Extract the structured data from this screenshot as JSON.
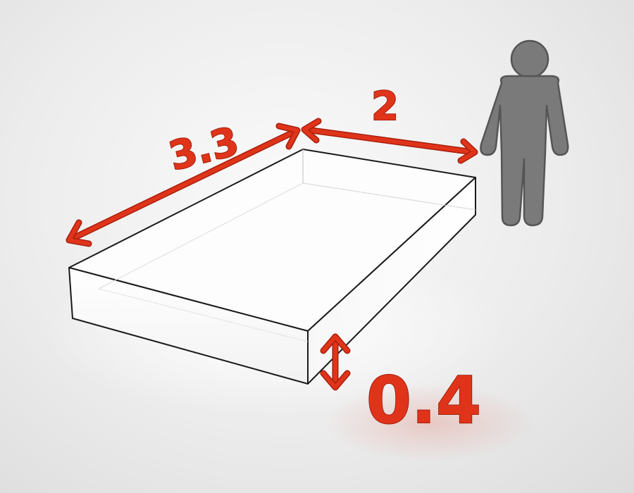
{
  "dimensions": {
    "length": "3.3",
    "width": "2",
    "height": "0.4"
  },
  "colors": {
    "accent": "#e0341a",
    "accent_dark": "#a61f0c",
    "figure": "#7a7a7a",
    "figure_outline": "#555555",
    "box_edge": "#1a1a1a"
  },
  "icons": {
    "scale_figure": "person-icon"
  }
}
